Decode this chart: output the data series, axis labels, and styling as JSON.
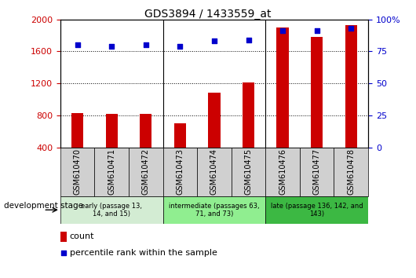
{
  "title": "GDS3894 / 1433559_at",
  "samples": [
    "GSM610470",
    "GSM610471",
    "GSM610472",
    "GSM610473",
    "GSM610474",
    "GSM610475",
    "GSM610476",
    "GSM610477",
    "GSM610478"
  ],
  "counts": [
    830,
    815,
    815,
    700,
    1080,
    1210,
    1900,
    1780,
    1930
  ],
  "percentile_ranks": [
    80,
    79,
    80,
    79,
    83,
    84,
    91,
    91,
    93
  ],
  "ylim_left": [
    400,
    2000
  ],
  "ylim_right": [
    0,
    100
  ],
  "yticks_left": [
    400,
    800,
    1200,
    1600,
    2000
  ],
  "yticks_right": [
    0,
    25,
    50,
    75,
    100
  ],
  "bar_color": "#cc0000",
  "dot_color": "#0000cc",
  "grid_color": "#000000",
  "stage_groups": [
    {
      "label": "early (passage 13,\n14, and 15)",
      "start": 0,
      "end": 2,
      "color": "#d3ecd3"
    },
    {
      "label": "intermediate (passages 63,\n71, and 73)",
      "start": 3,
      "end": 5,
      "color": "#90ee90"
    },
    {
      "label": "late (passage 136, 142, and\n143)",
      "start": 6,
      "end": 8,
      "color": "#3cb843"
    }
  ],
  "stage_label": "development stage",
  "legend_count_label": "count",
  "legend_percentile_label": "percentile rank within the sample",
  "tick_label_color_left": "#cc0000",
  "tick_label_color_right": "#0000cc",
  "cell_bg_color": "#d0d0d0",
  "plot_bg_color": "#ffffff",
  "bar_width": 0.35
}
